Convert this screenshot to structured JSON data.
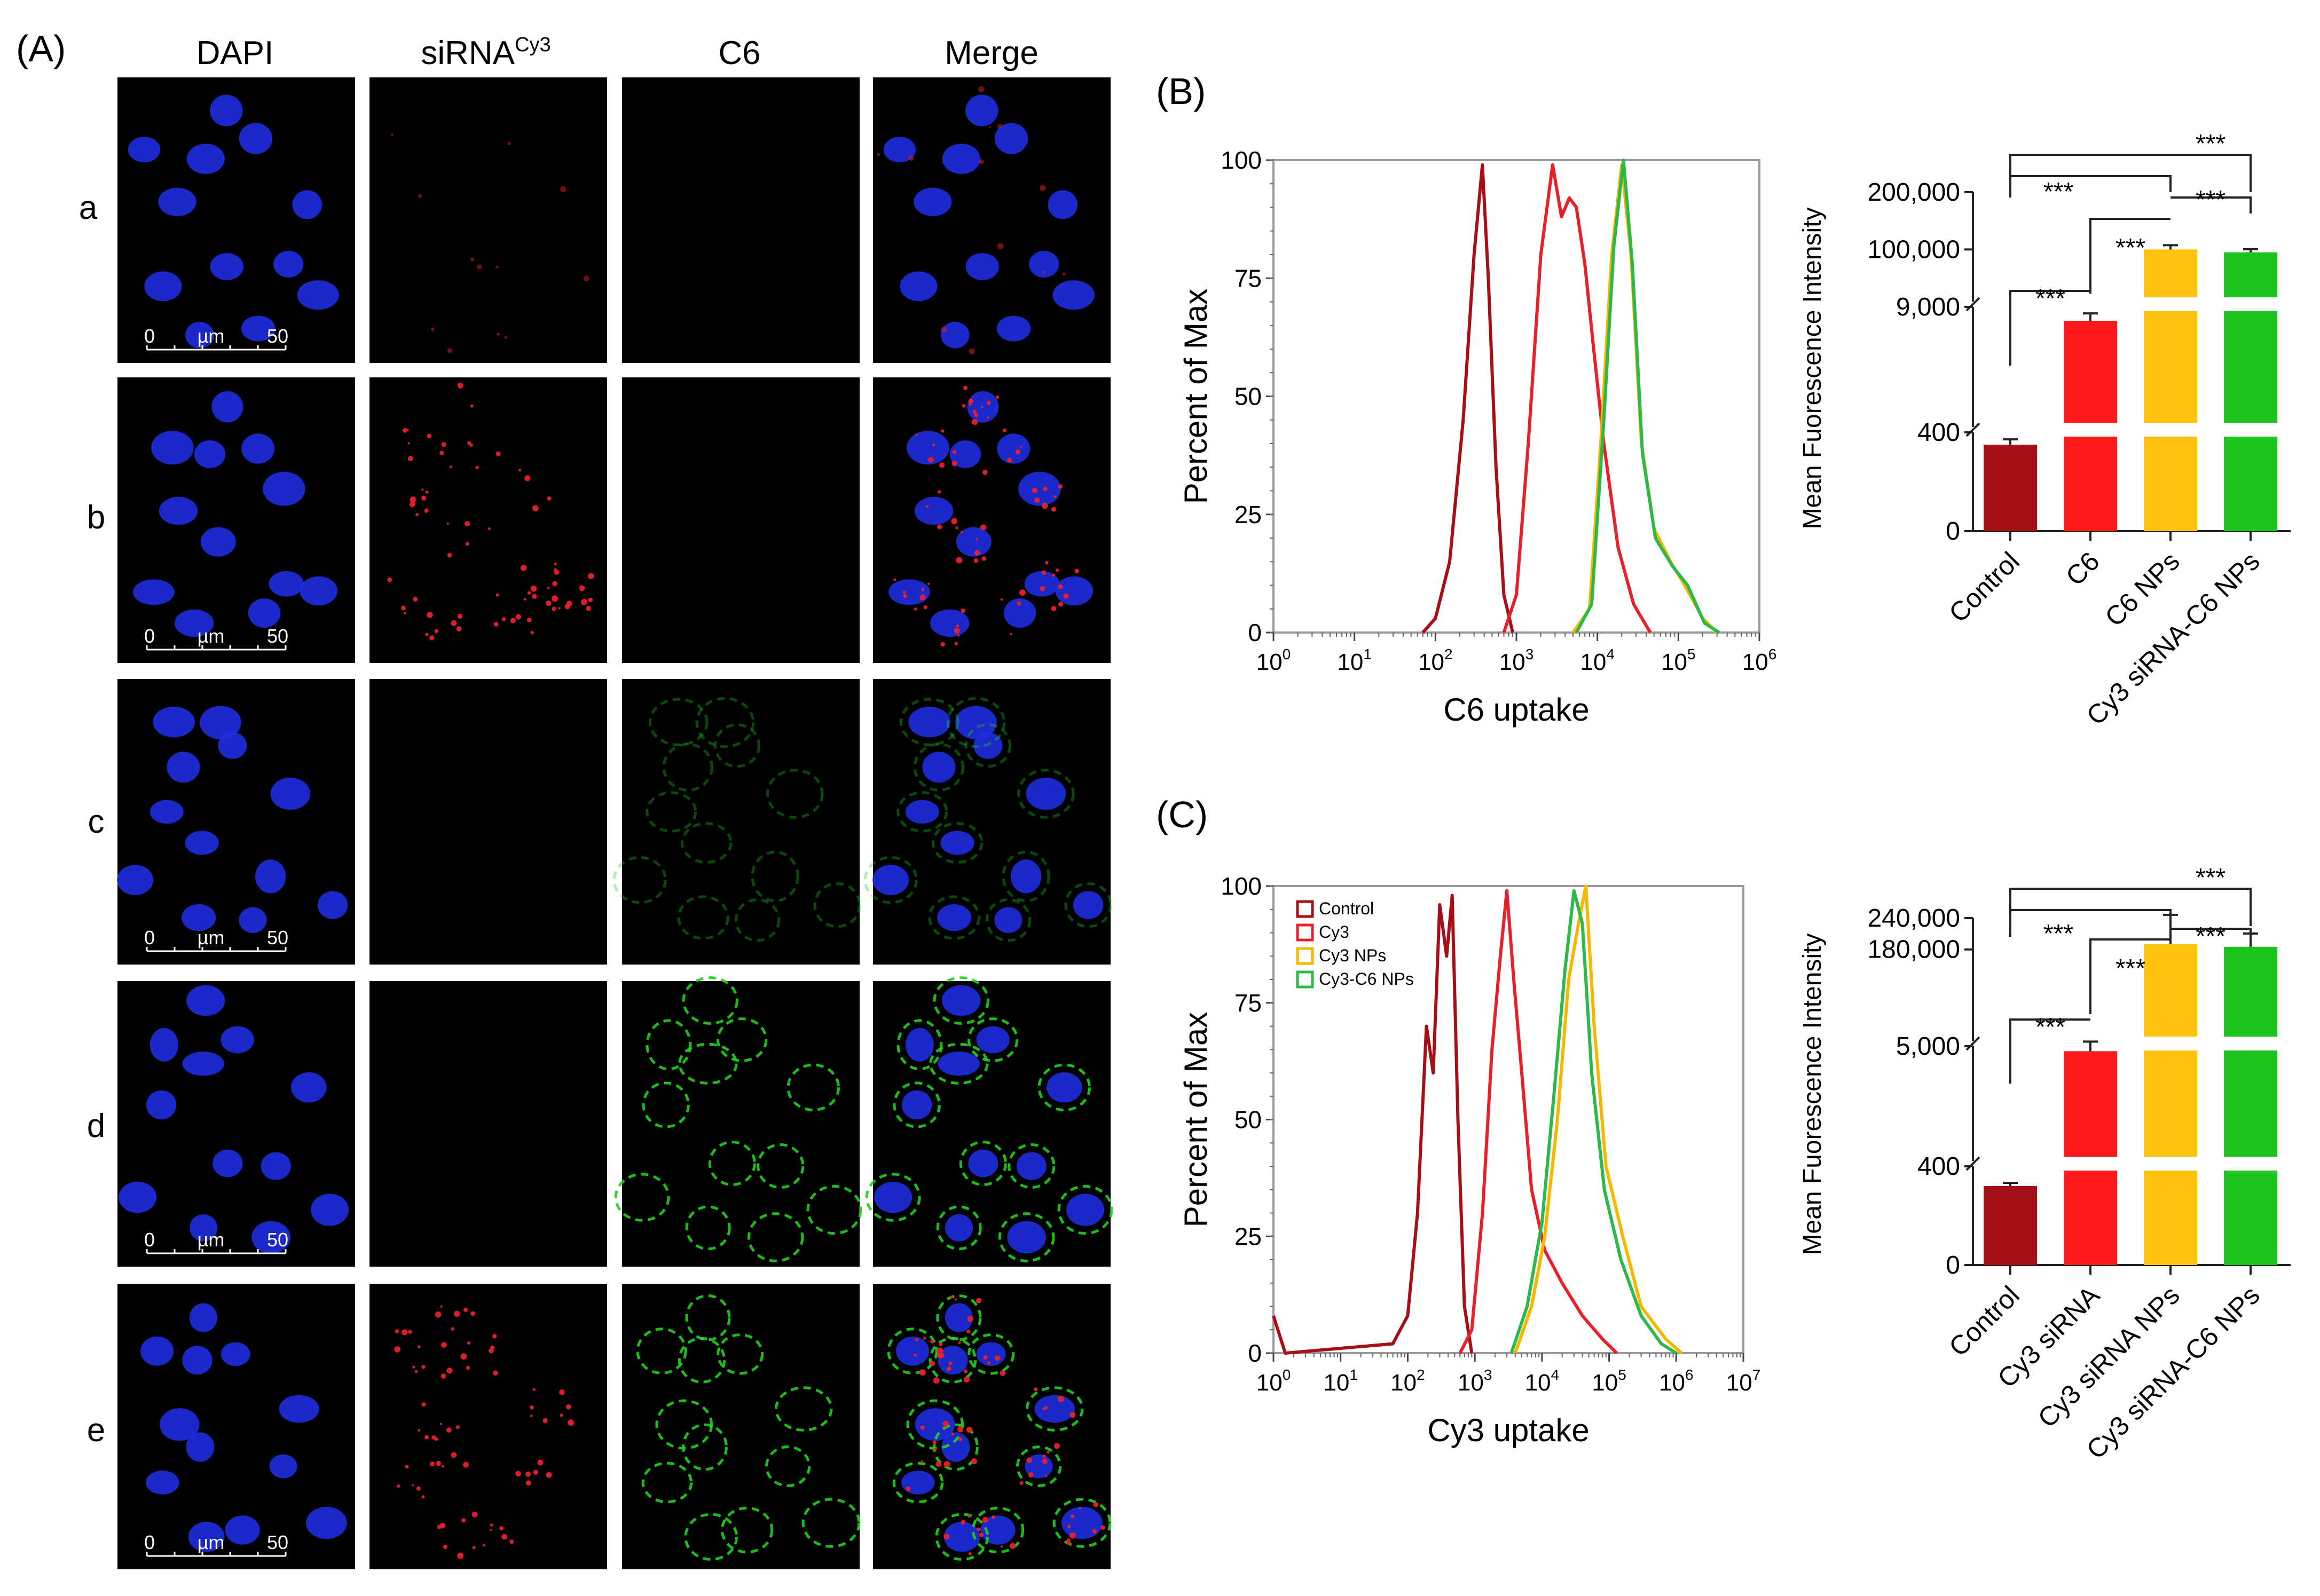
{
  "panel_labels": {
    "A": "(A)",
    "B": "(B)",
    "C": "(C)"
  },
  "microscopy": {
    "column_headers": [
      "DAPI",
      "siRNA",
      "C6",
      "Merge"
    ],
    "sirna_superscript": "Cy3",
    "row_labels": [
      "a",
      "b",
      "c",
      "d",
      "e"
    ],
    "scale_bar": {
      "start": "0",
      "unit": "µm",
      "end": "50"
    },
    "colors": {
      "nucleus": "#1f2ee0",
      "sirna": "#e8202a",
      "c6": "#20d020",
      "background": "#000000"
    }
  },
  "chart_data": [
    {
      "id": "B-flow",
      "type": "line",
      "xlabel": "C6 uptake",
      "ylabel": "Percent of Max",
      "x_scale": "log",
      "xlim": [
        1,
        1000000
      ],
      "ylim": [
        0,
        100
      ],
      "x_tick_labels": [
        "10^0",
        "10^1",
        "10^2",
        "10^3",
        "10^4",
        "10^5",
        "10^6"
      ],
      "y_ticks": [
        0,
        25,
        50,
        75,
        100
      ],
      "series": [
        {
          "color": "#a50f15",
          "points": [
            [
              70,
              0
            ],
            [
              100,
              3
            ],
            [
              150,
              15
            ],
            [
              220,
              45
            ],
            [
              300,
              80
            ],
            [
              380,
              99
            ],
            [
              450,
              75
            ],
            [
              560,
              35
            ],
            [
              700,
              8
            ],
            [
              900,
              0
            ]
          ]
        },
        {
          "color": "#e8202a",
          "points": [
            [
              700,
              0
            ],
            [
              1000,
              8
            ],
            [
              1400,
              40
            ],
            [
              2000,
              80
            ],
            [
              2800,
              99
            ],
            [
              3600,
              88
            ],
            [
              4500,
              92
            ],
            [
              5500,
              90
            ],
            [
              7000,
              78
            ],
            [
              9000,
              60
            ],
            [
              12000,
              40
            ],
            [
              18000,
              18
            ],
            [
              28000,
              6
            ],
            [
              45000,
              0
            ]
          ]
        },
        {
          "color": "#f5b800",
          "points": [
            [
              5000,
              0
            ],
            [
              8000,
              5
            ],
            [
              11000,
              40
            ],
            [
              15000,
              80
            ],
            [
              20000,
              99
            ],
            [
              26000,
              80
            ],
            [
              35000,
              40
            ],
            [
              50000,
              22
            ],
            [
              80000,
              15
            ],
            [
              120000,
              10
            ],
            [
              200000,
              3
            ],
            [
              300000,
              0
            ]
          ]
        },
        {
          "color": "#2eb84a",
          "points": [
            [
              5500,
              0
            ],
            [
              8500,
              6
            ],
            [
              12000,
              45
            ],
            [
              16000,
              82
            ],
            [
              21000,
              100
            ],
            [
              27000,
              78
            ],
            [
              36000,
              38
            ],
            [
              52000,
              20
            ],
            [
              85000,
              14
            ],
            [
              130000,
              10
            ],
            [
              210000,
              2
            ],
            [
              320000,
              0
            ]
          ]
        }
      ]
    },
    {
      "id": "B-bar",
      "type": "bar",
      "ylabel": "Mean Fuorescence Intensity",
      "y_scale": "broken",
      "y_tick_labels": [
        "0",
        "400",
        "9,000",
        "100,000",
        "200,000"
      ],
      "categories": [
        "Control",
        "C6",
        "C6 NPs",
        "Cy3 siRNA-C6 NPs"
      ],
      "values": [
        350,
        8000,
        100000,
        95000
      ],
      "colors": [
        "#a50f15",
        "#ff1a1a",
        "#ffc20e",
        "#1ec41e"
      ],
      "significance": "***"
    },
    {
      "id": "C-flow",
      "type": "line",
      "xlabel": "Cy3 uptake",
      "ylabel": "Percent of Max",
      "x_scale": "log",
      "xlim": [
        1,
        10000000
      ],
      "ylim": [
        0,
        100
      ],
      "x_tick_labels": [
        "10^0",
        "10^1",
        "10^2",
        "10^3",
        "10^4",
        "10^5",
        "10^6",
        "10^7"
      ],
      "y_ticks": [
        0,
        25,
        50,
        75,
        100
      ],
      "legend": [
        "Control",
        "Cy3",
        "Cy3 NPs",
        "Cy3-C6 NPs"
      ],
      "series": [
        {
          "name": "Control",
          "color": "#a50f15",
          "points": [
            [
              1,
              8
            ],
            [
              1.5,
              0
            ],
            [
              60,
              2
            ],
            [
              100,
              8
            ],
            [
              140,
              30
            ],
            [
              190,
              70
            ],
            [
              240,
              60
            ],
            [
              300,
              96
            ],
            [
              380,
              85
            ],
            [
              460,
              98
            ],
            [
              560,
              50
            ],
            [
              700,
              10
            ],
            [
              900,
              0
            ]
          ]
        },
        {
          "name": "Cy3",
          "color": "#e8202a",
          "points": [
            [
              600,
              0
            ],
            [
              900,
              5
            ],
            [
              1300,
              30
            ],
            [
              1800,
              65
            ],
            [
              2400,
              85
            ],
            [
              3000,
              99
            ],
            [
              3800,
              80
            ],
            [
              5000,
              60
            ],
            [
              7000,
              35
            ],
            [
              11000,
              22
            ],
            [
              20000,
              15
            ],
            [
              40000,
              8
            ],
            [
              80000,
              3
            ],
            [
              130000,
              0
            ]
          ]
        },
        {
          "name": "Cy3 NPs",
          "color": "#f5b800",
          "points": [
            [
              4000,
              0
            ],
            [
              7000,
              10
            ],
            [
              11000,
              25
            ],
            [
              17000,
              50
            ],
            [
              25000,
              80
            ],
            [
              35000,
              92
            ],
            [
              45000,
              100
            ],
            [
              60000,
              70
            ],
            [
              90000,
              40
            ],
            [
              160000,
              25
            ],
            [
              300000,
              10
            ],
            [
              700000,
              3
            ],
            [
              1200000,
              0
            ]
          ]
        },
        {
          "name": "Cy3-C6 NPs",
          "color": "#2eb84a",
          "points": [
            [
              3500,
              0
            ],
            [
              6000,
              10
            ],
            [
              10000,
              28
            ],
            [
              15000,
              55
            ],
            [
              22000,
              82
            ],
            [
              30000,
              99
            ],
            [
              40000,
              92
            ],
            [
              55000,
              60
            ],
            [
              85000,
              35
            ],
            [
              150000,
              20
            ],
            [
              300000,
              8
            ],
            [
              600000,
              2
            ],
            [
              1000000,
              0
            ]
          ]
        }
      ]
    },
    {
      "id": "C-bar",
      "type": "bar",
      "ylabel": "Mean Fuorescence Intensity",
      "y_scale": "broken",
      "y_tick_labels": [
        "0",
        "400",
        "5,000",
        "180,000",
        "240,000"
      ],
      "categories": [
        "Control",
        "Cy3 siRNA",
        "Cy3 siRNA NPs",
        "Cy3 siRNA-C6 NPs"
      ],
      "values": [
        320,
        4800,
        190000,
        185000
      ],
      "colors": [
        "#a50f15",
        "#ff1a1a",
        "#ffc20e",
        "#1ec41e"
      ],
      "significance": "***"
    }
  ]
}
